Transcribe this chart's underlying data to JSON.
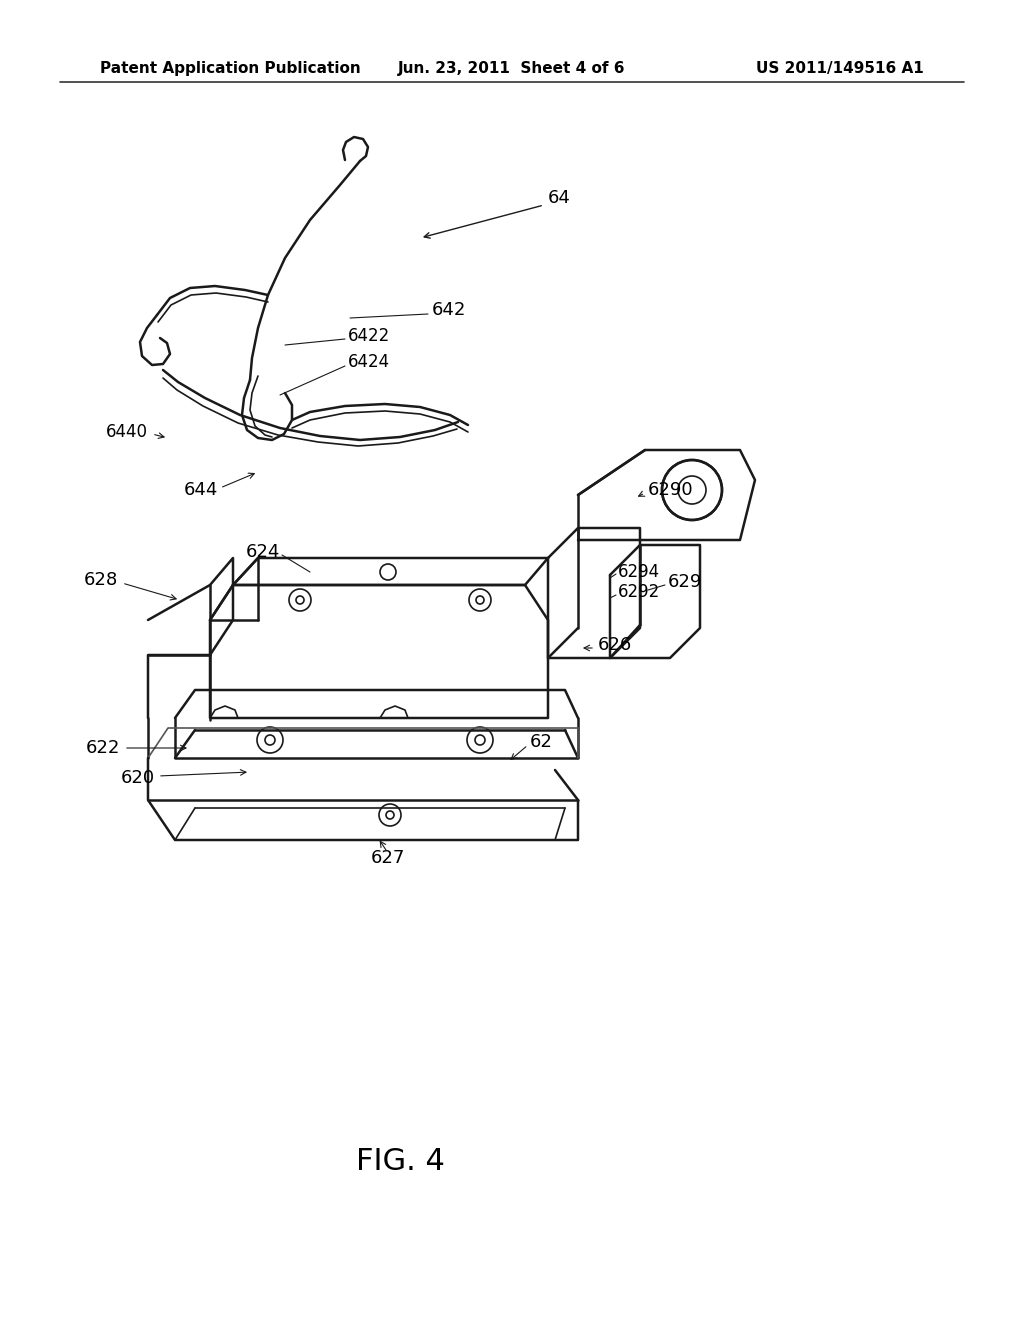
{
  "background_color": "#ffffff",
  "header_left": "Patent Application Publication",
  "header_center": "Jun. 23, 2011  Sheet 4 of 6",
  "header_right": "US 2011/149516 A1",
  "figure_label": "FIG. 4",
  "line_color": "#1a1a1a",
  "lw": 1.8,
  "lw_thin": 1.2,
  "text_color": "#000000",
  "header_fontsize": 11,
  "label_fontsize": 13,
  "fig_label_fontsize": 22
}
